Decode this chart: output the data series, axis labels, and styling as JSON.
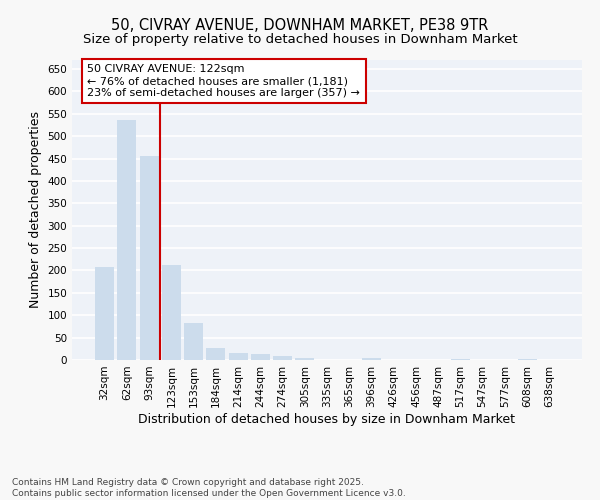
{
  "title_line1": "50, CIVRAY AVENUE, DOWNHAM MARKET, PE38 9TR",
  "title_line2": "Size of property relative to detached houses in Downham Market",
  "xlabel": "Distribution of detached houses by size in Downham Market",
  "ylabel": "Number of detached properties",
  "bar_color": "#ccdcec",
  "bar_edge_color": "#ccdcec",
  "categories": [
    "32sqm",
    "62sqm",
    "93sqm",
    "123sqm",
    "153sqm",
    "184sqm",
    "214sqm",
    "244sqm",
    "274sqm",
    "305sqm",
    "335sqm",
    "365sqm",
    "396sqm",
    "426sqm",
    "456sqm",
    "487sqm",
    "517sqm",
    "547sqm",
    "577sqm",
    "608sqm",
    "638sqm"
  ],
  "values": [
    207,
    535,
    455,
    212,
    82,
    26,
    15,
    13,
    8,
    5,
    0,
    0,
    4,
    0,
    0,
    0,
    3,
    0,
    0,
    3,
    0
  ],
  "ylim": [
    0,
    670
  ],
  "yticks": [
    0,
    50,
    100,
    150,
    200,
    250,
    300,
    350,
    400,
    450,
    500,
    550,
    600,
    650
  ],
  "red_line_x": 2.5,
  "red_line_color": "#cc0000",
  "annotation_text": "50 CIVRAY AVENUE: 122sqm\n← 76% of detached houses are smaller (1,181)\n23% of semi-detached houses are larger (357) →",
  "annotation_box_color": "#ffffff",
  "annotation_box_edge": "#cc0000",
  "background_color": "#eef2f8",
  "grid_color": "#ffffff",
  "fig_bg_color": "#f8f8f8",
  "footer_line1": "Contains HM Land Registry data © Crown copyright and database right 2025.",
  "footer_line2": "Contains public sector information licensed under the Open Government Licence v3.0.",
  "title_fontsize": 10.5,
  "subtitle_fontsize": 9.5,
  "axis_label_fontsize": 9,
  "tick_fontsize": 7.5,
  "annotation_fontsize": 8,
  "footer_fontsize": 6.5
}
